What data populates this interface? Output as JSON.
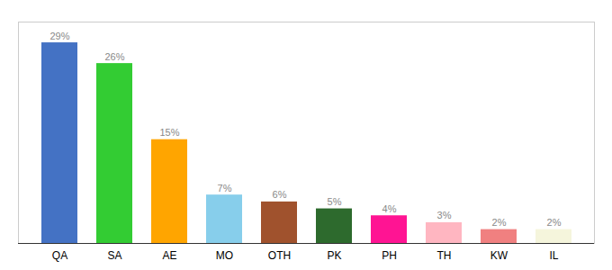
{
  "chart_data": {
    "type": "bar",
    "categories": [
      "QA",
      "SA",
      "AE",
      "MO",
      "OTH",
      "PK",
      "PH",
      "TH",
      "KW",
      "IL"
    ],
    "values": [
      29,
      26,
      15,
      7,
      6,
      5,
      4,
      3,
      2,
      2
    ],
    "value_labels": [
      "29%",
      "26%",
      "15%",
      "7%",
      "6%",
      "5%",
      "4%",
      "3%",
      "2%",
      "2%"
    ],
    "colors": [
      "#4472C4",
      "#33CC33",
      "#FFA500",
      "#87CEEB",
      "#A0522D",
      "#2D6A2D",
      "#FF1493",
      "#FFB6C1",
      "#F08080",
      "#F5F5DC"
    ],
    "ylim": [
      0,
      32
    ],
    "data_labels": true,
    "tick_labels": "x",
    "grid": false
  }
}
